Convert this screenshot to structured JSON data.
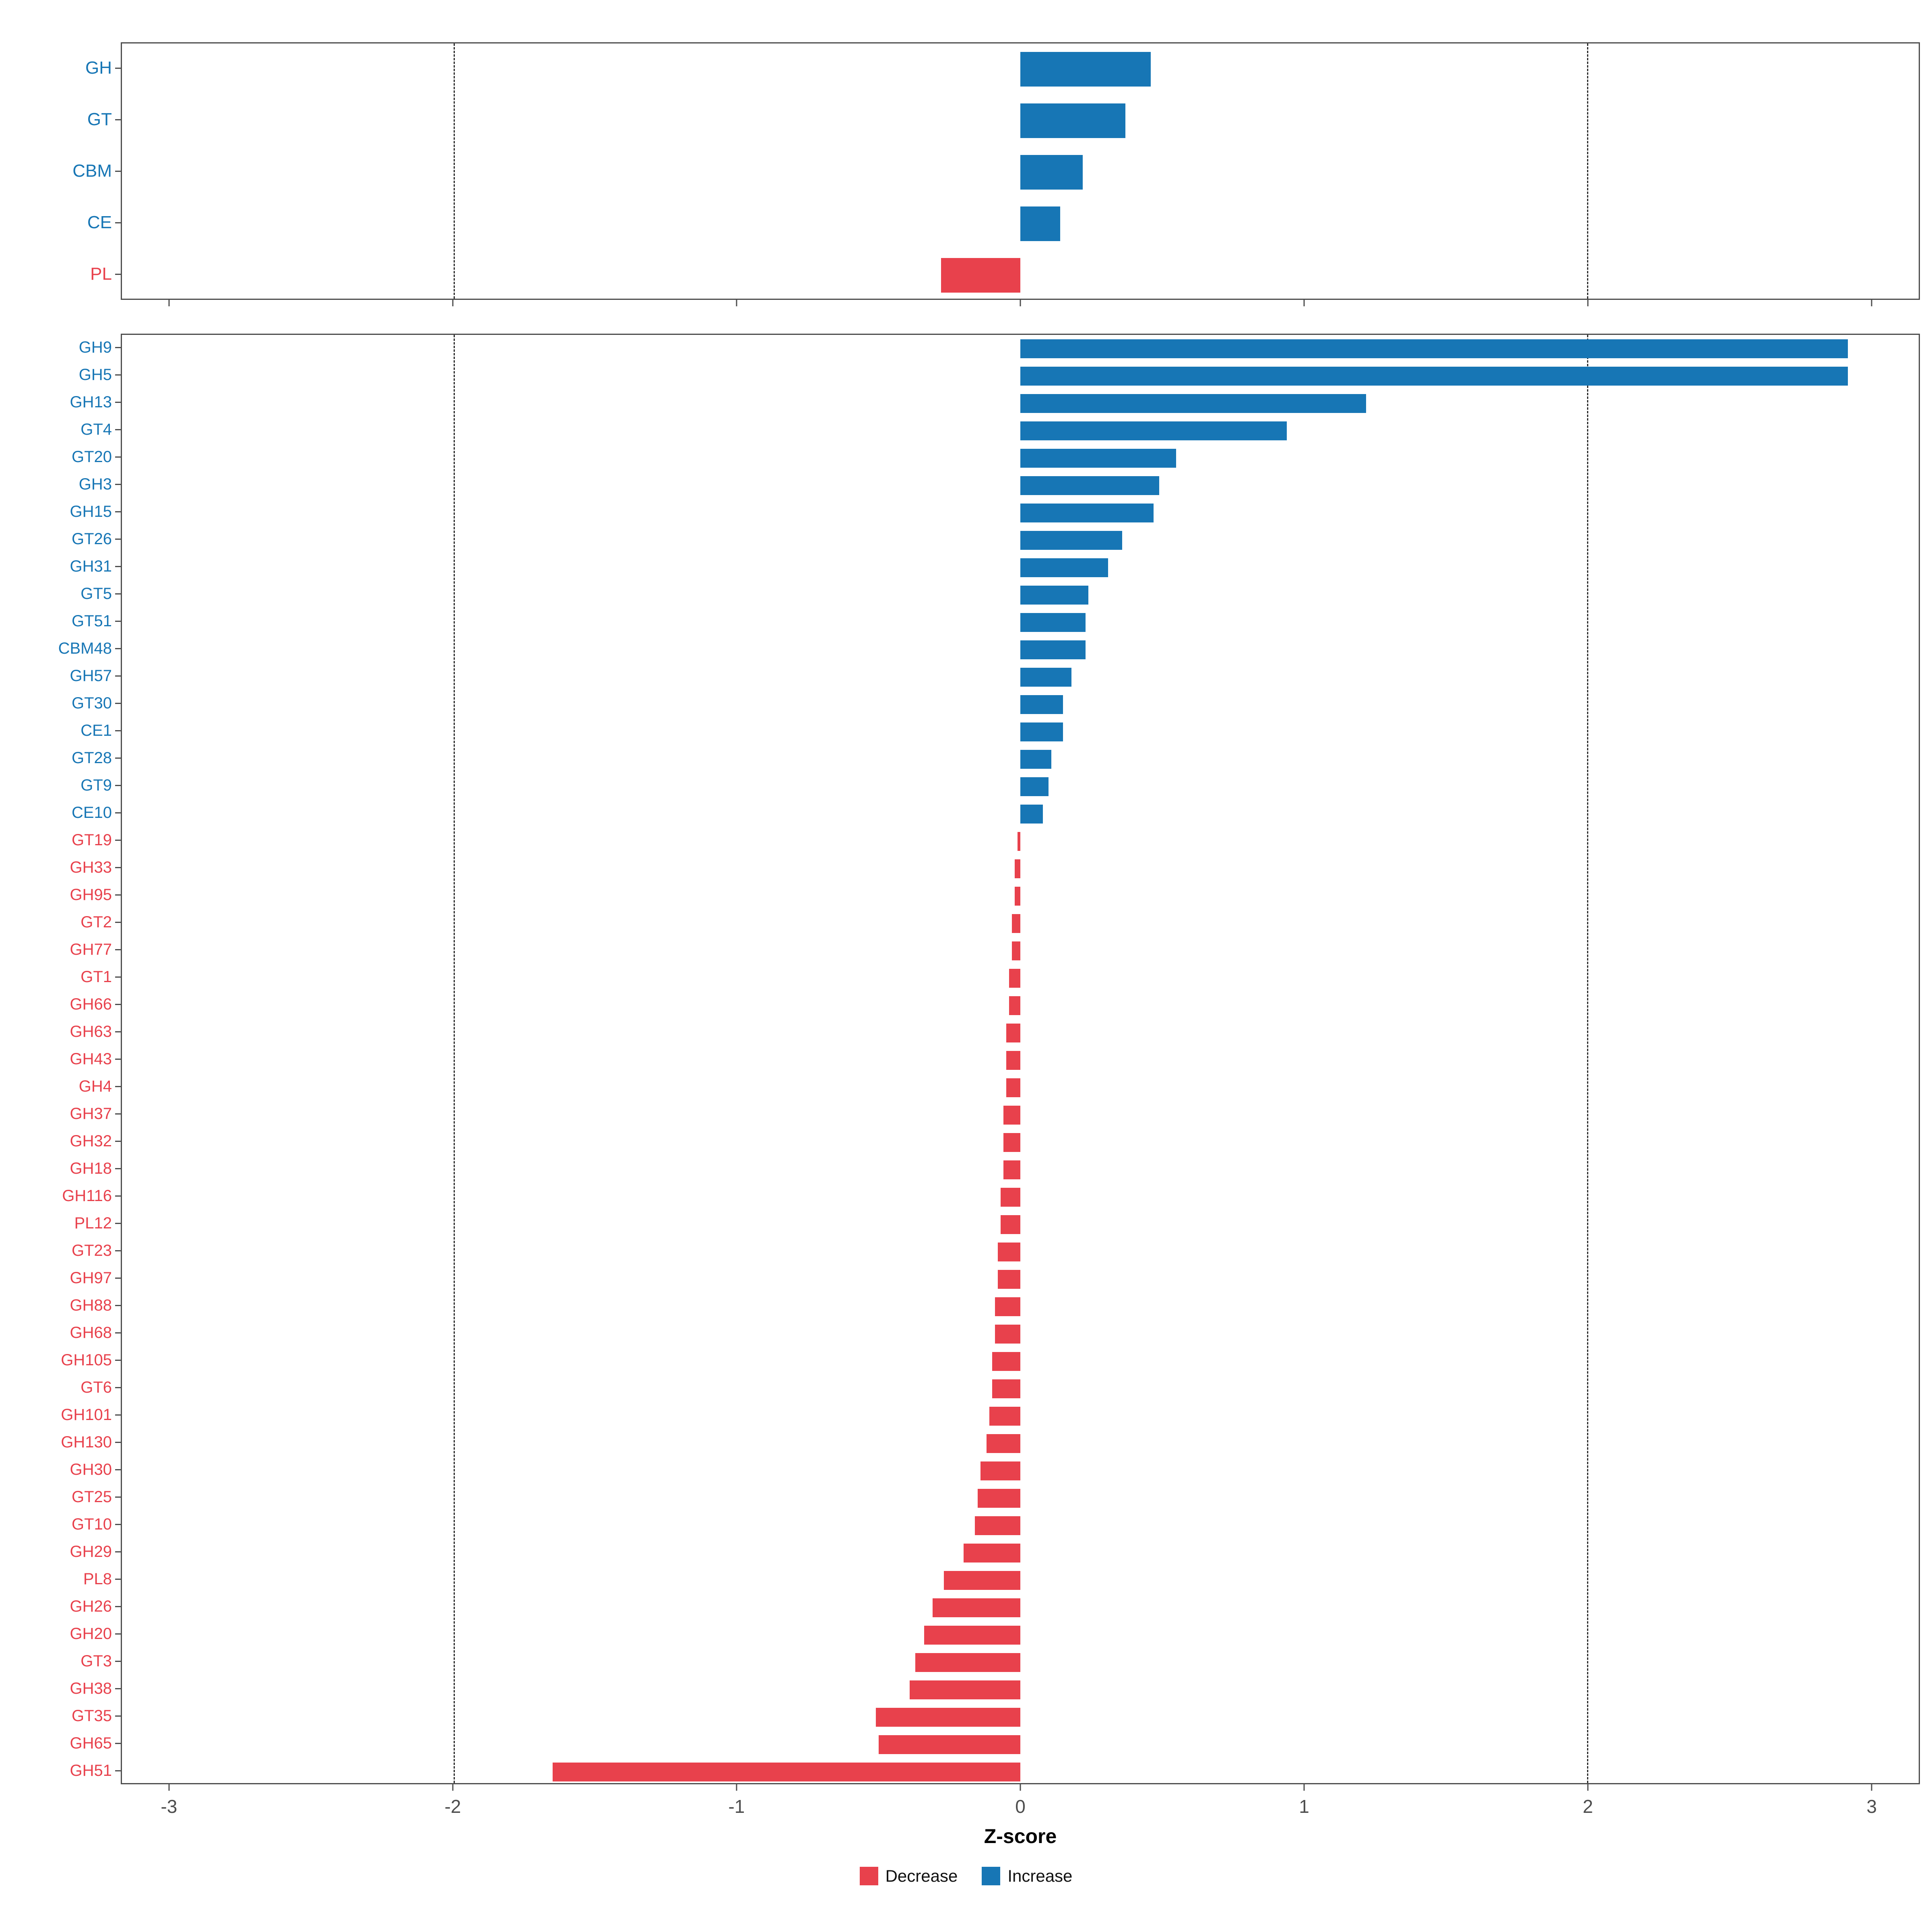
{
  "xlabel": "Z-score",
  "axis": {
    "min": -3.17,
    "max": 3.17,
    "ticks": [
      -3,
      -2,
      -1,
      0,
      1,
      2,
      3
    ],
    "tick_labels": [
      "-3",
      "-2",
      "-1",
      "0",
      "1",
      "2",
      "3"
    ],
    "dashed_lines": [
      -2,
      2
    ]
  },
  "colors": {
    "increase": "#1776b5",
    "decrease": "#e8414c",
    "axis_text": "#4d4d4d",
    "panel_border": "#4d4d4d"
  },
  "legend": {
    "items": [
      {
        "label": "Decrease",
        "type": "decrease"
      },
      {
        "label": "Increase",
        "type": "increase"
      }
    ]
  },
  "chart_data": [
    {
      "type": "bar",
      "orientation": "horizontal",
      "panel": "cazyme-classes",
      "x_range": [
        -3.17,
        3.17
      ],
      "xlabel": "Z-score",
      "grid": "dashed at -2 and 2",
      "categories": [
        "GH",
        "GT",
        "CBM",
        "CE",
        "PL"
      ],
      "values": [
        0.46,
        0.37,
        0.22,
        0.14,
        -0.28
      ]
    },
    {
      "type": "bar",
      "orientation": "horizontal",
      "panel": "cazyme-families",
      "x_range": [
        -3.17,
        3.17
      ],
      "xlabel": "Z-score",
      "grid": "dashed at -2 and 2",
      "categories": [
        "GH9",
        "GH5",
        "GH13",
        "GT4",
        "GT20",
        "GH3",
        "GH15",
        "GT26",
        "GH31",
        "GT5",
        "GT51",
        "CBM48",
        "GH57",
        "GT30",
        "CE1",
        "GT28",
        "GT9",
        "CE10",
        "GT19",
        "GH33",
        "GH95",
        "GT2",
        "GH77",
        "GT1",
        "GH66",
        "GH63",
        "GH43",
        "GH4",
        "GH37",
        "GH32",
        "GH18",
        "GH116",
        "PL12",
        "GT23",
        "GH97",
        "GH88",
        "GH68",
        "GH105",
        "GT6",
        "GH101",
        "GH130",
        "GH30",
        "GT25",
        "GT10",
        "GH29",
        "PL8",
        "GH26",
        "GH20",
        "GT3",
        "GH38",
        "GT35",
        "GH65",
        "GH51"
      ],
      "values": [
        2.92,
        2.92,
        1.22,
        0.94,
        0.55,
        0.49,
        0.47,
        0.36,
        0.31,
        0.24,
        0.23,
        0.23,
        0.18,
        0.15,
        0.15,
        0.11,
        0.1,
        0.08,
        -0.01,
        -0.02,
        -0.02,
        -0.03,
        -0.03,
        -0.04,
        -0.04,
        -0.05,
        -0.05,
        -0.05,
        -0.06,
        -0.06,
        -0.06,
        -0.07,
        -0.07,
        -0.08,
        -0.08,
        -0.09,
        -0.09,
        -0.1,
        -0.1,
        -0.11,
        -0.12,
        -0.14,
        -0.15,
        -0.16,
        -0.2,
        -0.27,
        -0.31,
        -0.34,
        -0.37,
        -0.39,
        -0.51,
        -0.5,
        -1.65
      ]
    }
  ]
}
